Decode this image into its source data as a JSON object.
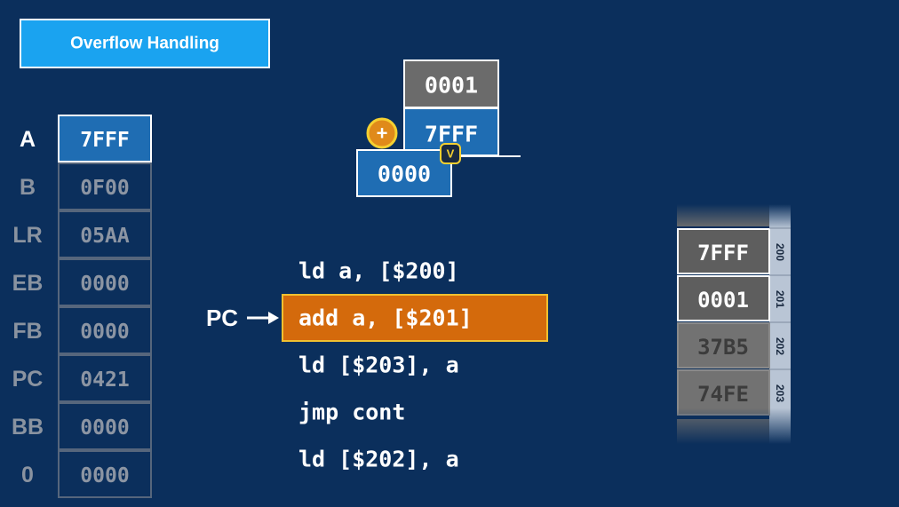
{
  "header": {
    "title": "Overflow Handling"
  },
  "registers": [
    {
      "name": "A",
      "value": "7FFF"
    },
    {
      "name": "B",
      "value": "0F00"
    },
    {
      "name": "LR",
      "value": "05AA"
    },
    {
      "name": "EB",
      "value": "0000"
    },
    {
      "name": "FB",
      "value": "0000"
    },
    {
      "name": "PC",
      "value": "0421"
    },
    {
      "name": "BB",
      "value": "0000"
    },
    {
      "name": "0",
      "value": "0000"
    }
  ],
  "adder": {
    "operand": "0001",
    "accumulator": "7FFF",
    "result": "0000",
    "operator": "+",
    "flag": "V"
  },
  "pointer": {
    "label": "PC"
  },
  "code": [
    "ld a, [$200]",
    "add a, [$201]",
    "ld [$203], a",
    "jmp cont",
    "ld [$202], a"
  ],
  "memory": [
    {
      "address": "200",
      "value": "7FFF"
    },
    {
      "address": "201",
      "value": "0001"
    },
    {
      "address": "202",
      "value": "37B5"
    },
    {
      "address": "203",
      "value": "74FE"
    }
  ]
}
